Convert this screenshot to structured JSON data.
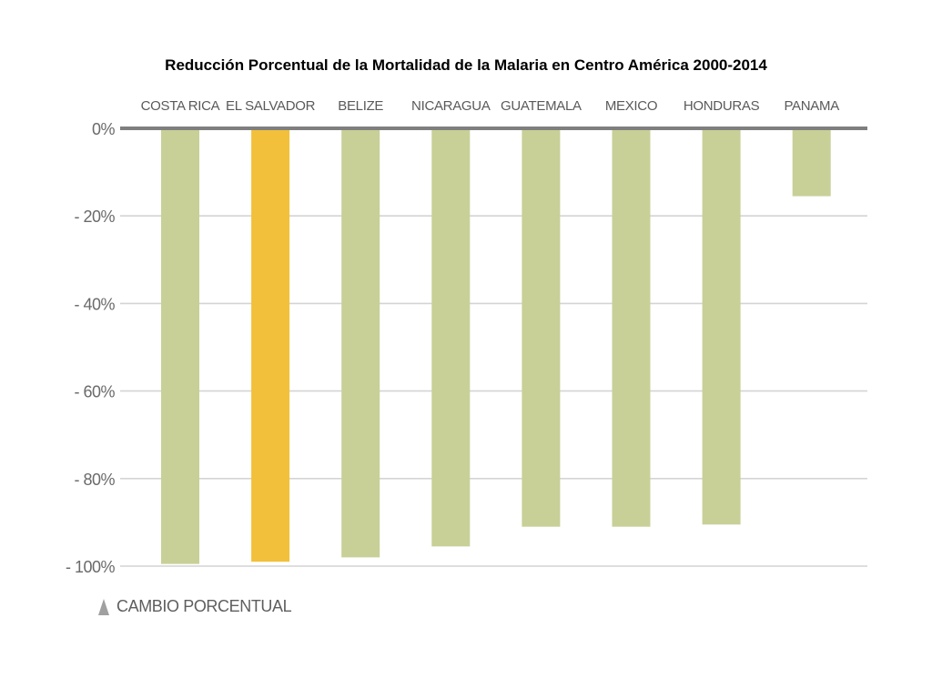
{
  "chart_data": {
    "type": "bar",
    "title": "Reducción Porcentual de la Mortalidad de la Malaria en Centro América 2000-2014",
    "categories": [
      "COSTA RICA",
      "EL SALVADOR",
      "BELIZE",
      "NICARAGUA",
      "GUATEMALA",
      "MEXICO",
      "HONDURAS",
      "PANAMA"
    ],
    "values": [
      -99.5,
      -99,
      -98,
      -95.5,
      -91,
      -91,
      -90.5,
      -15.5
    ],
    "highlight_index": 1,
    "ylim": [
      -100,
      0
    ],
    "yticks": [
      0,
      -20,
      -40,
      -60,
      -80,
      -100
    ],
    "ytick_labels": [
      "0%",
      "- 20%",
      "- 40%",
      "- 60%",
      "- 80%",
      "- 100%"
    ],
    "xlabel": "",
    "ylabel": "",
    "grid": true,
    "legend_label": "CAMBIO PORCENTUAL",
    "category_position": "top",
    "colors": {
      "bar": "#c8d097",
      "highlight": "#f2c03b",
      "grid": "#d4d4d4",
      "baseline": "#7f7f7f",
      "legend_icon": "#a0a0a0"
    }
  }
}
